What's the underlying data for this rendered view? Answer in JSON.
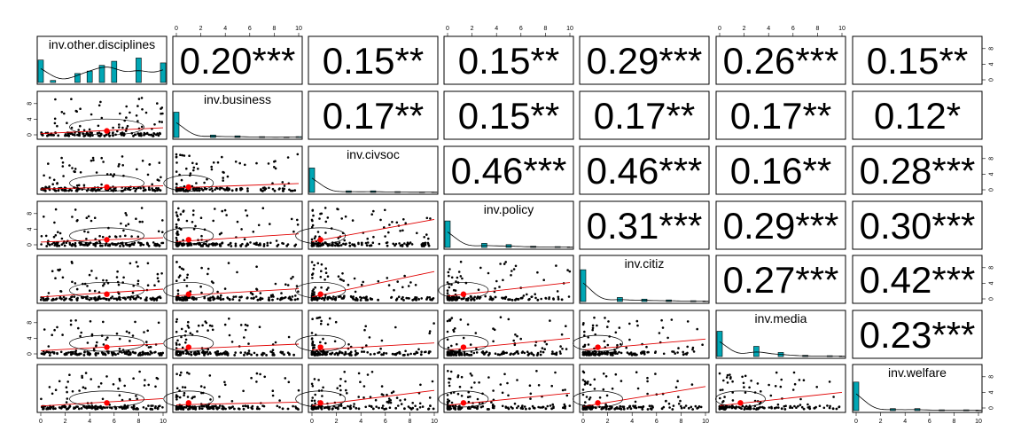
{
  "chart_data": {
    "type": "scatter-matrix",
    "variables": [
      "inv.other.disciplines",
      "inv.business",
      "inv.civsoc",
      "inv.policy",
      "inv.citiz",
      "inv.media",
      "inv.welfare"
    ],
    "axis_ticks": [
      "0",
      "2",
      "4",
      "6",
      "8",
      "10"
    ],
    "density_ticks": [
      "0",
      "4",
      "8"
    ],
    "axis_range": [
      0,
      10
    ],
    "correlations": [
      {
        "row": 0,
        "col": 1,
        "label": "0.20***"
      },
      {
        "row": 0,
        "col": 2,
        "label": "0.15**"
      },
      {
        "row": 0,
        "col": 3,
        "label": "0.15**"
      },
      {
        "row": 0,
        "col": 4,
        "label": "0.29***"
      },
      {
        "row": 0,
        "col": 5,
        "label": "0.26***"
      },
      {
        "row": 0,
        "col": 6,
        "label": "0.15**"
      },
      {
        "row": 1,
        "col": 2,
        "label": "0.17**"
      },
      {
        "row": 1,
        "col": 3,
        "label": "0.15**"
      },
      {
        "row": 1,
        "col": 4,
        "label": "0.17**"
      },
      {
        "row": 1,
        "col": 5,
        "label": "0.17**"
      },
      {
        "row": 1,
        "col": 6,
        "label": "0.12*"
      },
      {
        "row": 2,
        "col": 3,
        "label": "0.46***"
      },
      {
        "row": 2,
        "col": 4,
        "label": "0.46***"
      },
      {
        "row": 2,
        "col": 5,
        "label": "0.16**"
      },
      {
        "row": 2,
        "col": 6,
        "label": "0.28***"
      },
      {
        "row": 3,
        "col": 4,
        "label": "0.31***"
      },
      {
        "row": 3,
        "col": 5,
        "label": "0.29***"
      },
      {
        "row": 3,
        "col": 6,
        "label": "0.30***"
      },
      {
        "row": 4,
        "col": 5,
        "label": "0.27***"
      },
      {
        "row": 4,
        "col": 6,
        "label": "0.42***"
      },
      {
        "row": 5,
        "col": 6,
        "label": "0.23***"
      }
    ],
    "means": [
      5.4,
      1.0,
      0.7,
      1.3,
      1.2,
      1.7,
      1.3
    ],
    "histograms": [
      {
        "bins": [
          0,
          1,
          2,
          3,
          4,
          5,
          6,
          7,
          8,
          9,
          10
        ],
        "heights": [
          0.55,
          0.05,
          0,
          0.22,
          0.28,
          0.42,
          0.52,
          0,
          0.6,
          0,
          0.48
        ]
      },
      {
        "bins": [
          0,
          1,
          2,
          3,
          4,
          5,
          6,
          7,
          8,
          9,
          10
        ],
        "heights": [
          0.62,
          0,
          0,
          0.06,
          0,
          0.04,
          0,
          0.02,
          0,
          0.01,
          0.02
        ]
      },
      {
        "bins": [
          0,
          1,
          2,
          3,
          4,
          5,
          6,
          7,
          8,
          9,
          10
        ],
        "heights": [
          0.6,
          0,
          0,
          0.04,
          0,
          0.04,
          0,
          0.02,
          0,
          0.01,
          0.01
        ]
      },
      {
        "bins": [
          0,
          1,
          2,
          3,
          4,
          5,
          6,
          7,
          8,
          9,
          10
        ],
        "heights": [
          0.65,
          0,
          0,
          0.1,
          0,
          0.07,
          0,
          0.03,
          0,
          0.02,
          0.01
        ]
      },
      {
        "bins": [
          0,
          1,
          2,
          3,
          4,
          5,
          6,
          7,
          8,
          9,
          10
        ],
        "heights": [
          0.78,
          0,
          0,
          0.1,
          0,
          0.06,
          0,
          0.04,
          0,
          0.02,
          0.01
        ]
      },
      {
        "bins": [
          0,
          1,
          2,
          3,
          4,
          5,
          6,
          7,
          8,
          9,
          10
        ],
        "heights": [
          0.62,
          0,
          0,
          0.25,
          0,
          0.1,
          0,
          0.03,
          0,
          0.02,
          0.01
        ]
      },
      {
        "bins": [
          0,
          1,
          2,
          3,
          4,
          5,
          6,
          7,
          8,
          9,
          10
        ],
        "heights": [
          0.7,
          0,
          0,
          0.05,
          0,
          0.05,
          0,
          0.02,
          0,
          0.02,
          0.01
        ]
      }
    ],
    "fit_lines": [
      {
        "row": 1,
        "col": 0,
        "y0": 0.3,
        "y10": 1.8
      },
      {
        "row": 2,
        "col": 0,
        "y0": 0.2,
        "y10": 1.0
      },
      {
        "row": 2,
        "col": 1,
        "y0": 0.5,
        "y10": 1.6
      },
      {
        "row": 3,
        "col": 0,
        "y0": 0.7,
        "y10": 1.8
      },
      {
        "row": 3,
        "col": 1,
        "y0": 0.8,
        "y10": 2.8
      },
      {
        "row": 3,
        "col": 2,
        "y0": 0.8,
        "y10": 6.5
      },
      {
        "row": 4,
        "col": 0,
        "y0": 0.5,
        "y10": 2.5
      },
      {
        "row": 4,
        "col": 1,
        "y0": 0.8,
        "y10": 2.6
      },
      {
        "row": 4,
        "col": 2,
        "y0": 0.5,
        "y10": 7.0
      },
      {
        "row": 4,
        "col": 3,
        "y0": 0.7,
        "y10": 4.2
      },
      {
        "row": 5,
        "col": 0,
        "y0": 0.8,
        "y10": 2.6
      },
      {
        "row": 5,
        "col": 1,
        "y0": 1.2,
        "y10": 2.5
      },
      {
        "row": 5,
        "col": 2,
        "y0": 1.0,
        "y10": 2.8
      },
      {
        "row": 5,
        "col": 3,
        "y0": 1.0,
        "y10": 4.0
      },
      {
        "row": 5,
        "col": 4,
        "y0": 1.0,
        "y10": 3.8
      },
      {
        "row": 6,
        "col": 0,
        "y0": 0.5,
        "y10": 2.4
      },
      {
        "row": 6,
        "col": 1,
        "y0": 0.8,
        "y10": 1.5
      },
      {
        "row": 6,
        "col": 2,
        "y0": 0.6,
        "y10": 4.5
      },
      {
        "row": 6,
        "col": 3,
        "y0": 0.7,
        "y10": 3.8
      },
      {
        "row": 6,
        "col": 4,
        "y0": 0.4,
        "y10": 5.5
      },
      {
        "row": 6,
        "col": 5,
        "y0": 0.6,
        "y10": 4.0
      }
    ]
  }
}
